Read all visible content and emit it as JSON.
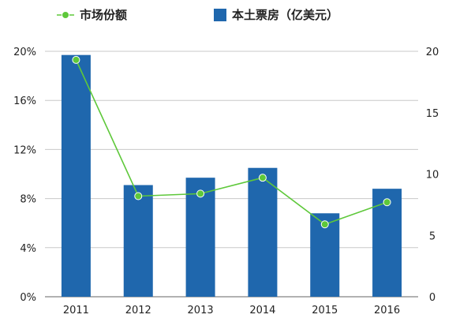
{
  "chart_data": {
    "type": "bar",
    "categories": [
      "2011",
      "2012",
      "2013",
      "2014",
      "2015",
      "2016"
    ],
    "series": [
      {
        "name": "本土票房（亿美元）",
        "type": "bar",
        "axis": "right",
        "color": "#1f67ad",
        "values": [
          19.7,
          9.1,
          9.7,
          10.5,
          6.8,
          8.8
        ]
      },
      {
        "name": "市场份额",
        "type": "line",
        "axis": "left",
        "color": "#5ec83a",
        "values": [
          19.3,
          8.2,
          8.4,
          9.7,
          5.9,
          7.7
        ]
      }
    ],
    "y_left": {
      "ticks": [
        "0%",
        "4%",
        "8%",
        "12%",
        "16%",
        "20%"
      ],
      "ylim": [
        0,
        20
      ]
    },
    "y_right": {
      "ticks": [
        "0",
        "5",
        "10",
        "15",
        "20"
      ],
      "ylim": [
        0,
        20
      ]
    },
    "grid": true,
    "legend_position": "top"
  }
}
